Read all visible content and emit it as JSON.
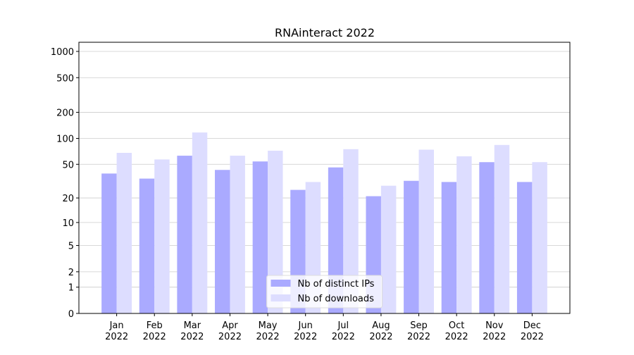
{
  "chart_data": {
    "type": "bar",
    "title": "RNAinteract 2022",
    "categories": [
      "Jan\n2022",
      "Feb\n2022",
      "Mar\n2022",
      "Apr\n2022",
      "May\n2022",
      "Jun\n2022",
      "Jul\n2022",
      "Aug\n2022",
      "Sep\n2022",
      "Oct\n2022",
      "Nov\n2022",
      "Dec\n2022"
    ],
    "series": [
      {
        "name": "Nb of distinct IPs",
        "color": "#aaaaff",
        "values": [
          39,
          34,
          63,
          43,
          54,
          25,
          46,
          21,
          32,
          31,
          53,
          31
        ]
      },
      {
        "name": "Nb of downloads",
        "color": "#ddddff",
        "values": [
          68,
          57,
          117,
          63,
          72,
          31,
          75,
          28,
          74,
          62,
          84,
          53
        ]
      }
    ],
    "yscale": "log1p",
    "ylim": [
      0,
      1273
    ],
    "yticks": [
      0,
      1,
      2,
      5,
      10,
      20,
      50,
      100,
      200,
      500,
      1000
    ],
    "grid": true,
    "legend": "lower center"
  }
}
